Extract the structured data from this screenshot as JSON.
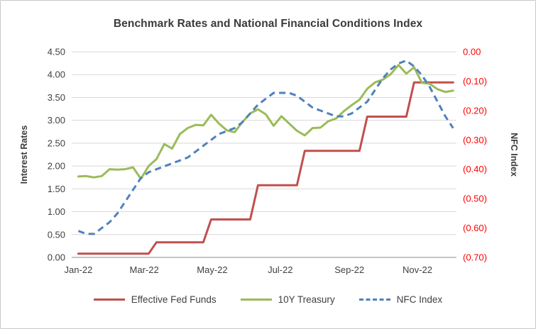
{
  "chart_data": {
    "type": "line",
    "title": "Benchmark Rates and National Financial Conditions Index",
    "grid": true,
    "grid_color": "#d9d9d9",
    "axis_line_color": "#8c8c8c",
    "label_color": "#404040",
    "legend_position": "bottom",
    "x_unit": "days since 2022-01-01, weekly observations",
    "x": [
      6,
      13,
      20,
      27,
      34,
      41,
      48,
      55,
      62,
      69,
      76,
      83,
      90,
      97,
      104,
      111,
      118,
      125,
      132,
      139,
      146,
      153,
      160,
      167,
      174,
      181,
      188,
      195,
      202,
      209,
      216,
      223,
      230,
      237,
      244,
      251,
      258,
      265,
      272,
      279,
      286,
      293,
      300,
      307,
      314,
      321,
      328,
      335,
      342
    ],
    "x_ticks": [
      {
        "day": 6,
        "label": "Jan-22"
      },
      {
        "day": 65,
        "label": "Mar-22"
      },
      {
        "day": 126,
        "label": "May-22"
      },
      {
        "day": 187,
        "label": "Jul-22"
      },
      {
        "day": 249,
        "label": "Sep-22"
      },
      {
        "day": 310,
        "label": "Nov-22"
      }
    ],
    "x_domain": [
      0,
      345
    ],
    "left_axis": {
      "title": "Interest Rates",
      "min": 0,
      "max": 4.5,
      "step": 0.5,
      "tick_labels": [
        "4.50",
        "4.00",
        "3.50",
        "3.00",
        "2.50",
        "2.00",
        "1.50",
        "1.00",
        "0.50",
        "0.00"
      ]
    },
    "right_axis": {
      "title": "NFC Index",
      "min": -0.7,
      "max": 0,
      "step": 0.1,
      "color": "#ff0000",
      "tick_labels": [
        "0.00",
        "(0.10)",
        "(0.20)",
        "(0.30)",
        "(0.40)",
        "(0.50)",
        "(0.60)",
        "(0.70)"
      ]
    },
    "series": [
      {
        "name": "Effective Fed Funds",
        "axis": "left",
        "color": "#c0504d",
        "dash": null,
        "values": [
          0.08,
          0.08,
          0.08,
          0.08,
          0.08,
          0.08,
          0.08,
          0.08,
          0.08,
          0.08,
          0.33,
          0.33,
          0.33,
          0.33,
          0.33,
          0.33,
          0.33,
          0.83,
          0.83,
          0.83,
          0.83,
          0.83,
          0.83,
          1.58,
          1.58,
          1.58,
          1.58,
          1.58,
          1.58,
          2.33,
          2.33,
          2.33,
          2.33,
          2.33,
          2.33,
          2.33,
          2.33,
          3.08,
          3.08,
          3.08,
          3.08,
          3.08,
          3.08,
          3.83,
          3.83,
          3.83,
          3.83,
          3.83,
          3.83
        ]
      },
      {
        "name": "10Y Treasury",
        "axis": "left",
        "color": "#9bbb59",
        "dash": null,
        "values": [
          1.77,
          1.78,
          1.75,
          1.78,
          1.93,
          1.92,
          1.93,
          1.97,
          1.72,
          2.0,
          2.15,
          2.48,
          2.38,
          2.7,
          2.83,
          2.9,
          2.89,
          3.12,
          2.93,
          2.78,
          2.74,
          2.96,
          3.15,
          3.24,
          3.13,
          2.88,
          3.09,
          2.93,
          2.77,
          2.67,
          2.83,
          2.84,
          2.98,
          3.04,
          3.2,
          3.33,
          3.45,
          3.69,
          3.83,
          3.89,
          4.01,
          4.21,
          4.02,
          4.16,
          3.82,
          3.8,
          3.68,
          3.62,
          3.65
        ]
      },
      {
        "name": "NFC Index",
        "axis": "right",
        "color": "#4f81bd",
        "dash": "9 6",
        "values": [
          -0.61,
          -0.62,
          -0.62,
          -0.6,
          -0.58,
          -0.55,
          -0.51,
          -0.47,
          -0.43,
          -0.41,
          -0.4,
          -0.39,
          -0.38,
          -0.37,
          -0.36,
          -0.34,
          -0.32,
          -0.3,
          -0.28,
          -0.27,
          -0.26,
          -0.24,
          -0.21,
          -0.18,
          -0.16,
          -0.14,
          -0.14,
          -0.14,
          -0.15,
          -0.17,
          -0.19,
          -0.2,
          -0.21,
          -0.22,
          -0.22,
          -0.21,
          -0.19,
          -0.17,
          -0.13,
          -0.09,
          -0.06,
          -0.04,
          -0.03,
          -0.05,
          -0.08,
          -0.12,
          -0.17,
          -0.22,
          -0.26
        ]
      }
    ]
  }
}
